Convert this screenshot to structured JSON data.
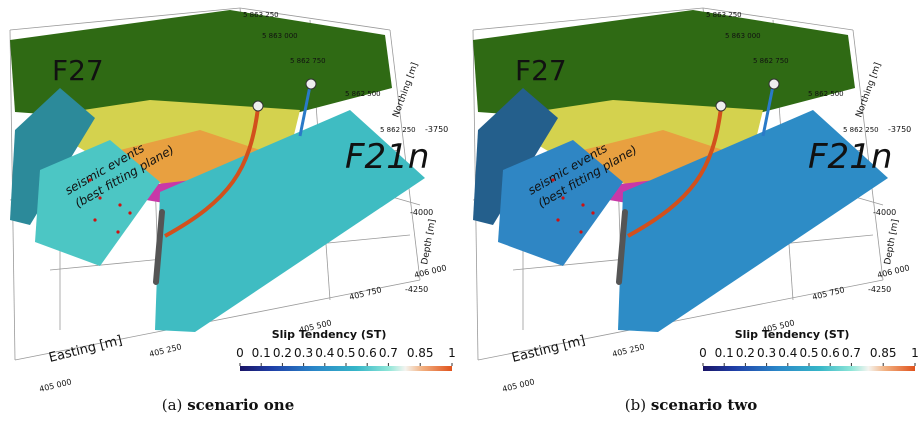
{
  "figure": {
    "labels": {
      "fault_a": "F27",
      "fault_b": "F21n",
      "events": [
        "seismic events",
        "(best fitting plane)"
      ],
      "colorbar_title": "Slip Tendency (ST)",
      "easting": "Easting [m]",
      "northing": "Northing [m]",
      "depth": "Depth [m]"
    },
    "easting_ticks": [
      "405 000",
      "405 250",
      "405 500",
      "405 750",
      "406 000"
    ],
    "northing_ticks": [
      "5 863 250",
      "5 863 000",
      "5 862 750",
      "5 862 500",
      "5 862 250"
    ],
    "depth_ticks": [
      "-3750",
      "-4000",
      "-4250"
    ],
    "colorbar_ticks": [
      0,
      0.1,
      0.2,
      0.3,
      0.4,
      0.5,
      0.6,
      0.7,
      0.85,
      1
    ],
    "panels": [
      {
        "tag": "(a)",
        "caption": "scenario one"
      },
      {
        "tag": "(b)",
        "caption": "scenario two"
      }
    ]
  }
}
